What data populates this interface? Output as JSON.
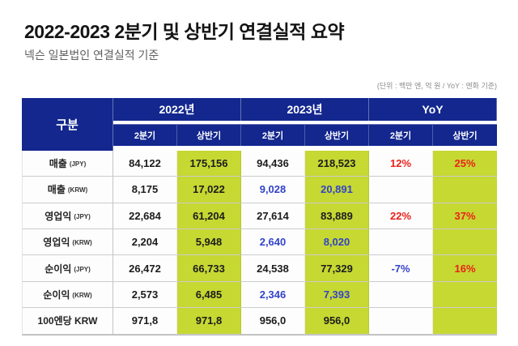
{
  "page": {
    "title": "2022-2023 2분기 및 상반기 연결실적 요약",
    "subtitle": "넥슨 일본법인 연결실적 기준",
    "unit_note": "(단위 : 백만 엔, 억 원 / YoY : 엔화 기준)"
  },
  "colors": {
    "header_bg": "#13278e",
    "highlight": "#c6d832",
    "increase_red": "#e8231b",
    "decrease_blue": "#3243c8",
    "body_text": "#1c1c1c"
  },
  "table": {
    "corner_label": "구분",
    "groups": [
      {
        "label": "2022년",
        "sub": [
          "2분기",
          "상반기"
        ]
      },
      {
        "label": "2023년",
        "sub": [
          "2분기",
          "상반기"
        ]
      },
      {
        "label": "YoY",
        "sub": [
          "2분기",
          "상반기"
        ]
      }
    ],
    "rows": [
      {
        "label": "매출",
        "unit": "(JPY)",
        "cells": [
          {
            "v": "84,122"
          },
          {
            "v": "175,156",
            "hl": true
          },
          {
            "v": "94,436"
          },
          {
            "v": "218,523",
            "hl": true
          },
          {
            "v": "12%",
            "color": "red"
          },
          {
            "v": "25%",
            "hl": true,
            "color": "red"
          }
        ]
      },
      {
        "label": "매출",
        "unit": "(KRW)",
        "cells": [
          {
            "v": "8,175"
          },
          {
            "v": "17,022",
            "hl": true
          },
          {
            "v": "9,028",
            "color": "blue"
          },
          {
            "v": "20,891",
            "hl": true,
            "color": "blue"
          },
          {
            "v": ""
          },
          {
            "v": "",
            "hl": true
          }
        ]
      },
      {
        "label": "영업익",
        "unit": "(JPY)",
        "cells": [
          {
            "v": "22,684"
          },
          {
            "v": "61,204",
            "hl": true
          },
          {
            "v": "27,614"
          },
          {
            "v": "83,889",
            "hl": true
          },
          {
            "v": "22%",
            "color": "red"
          },
          {
            "v": "37%",
            "hl": true,
            "color": "red"
          }
        ]
      },
      {
        "label": "영업익",
        "unit": "(KRW)",
        "cells": [
          {
            "v": "2,204"
          },
          {
            "v": "5,948",
            "hl": true
          },
          {
            "v": "2,640",
            "color": "blue"
          },
          {
            "v": "8,020",
            "hl": true,
            "color": "blue"
          },
          {
            "v": ""
          },
          {
            "v": "",
            "hl": true
          }
        ]
      },
      {
        "label": "순이익",
        "unit": "(JPY)",
        "cells": [
          {
            "v": "26,472"
          },
          {
            "v": "66,733",
            "hl": true
          },
          {
            "v": "24,538"
          },
          {
            "v": "77,329",
            "hl": true
          },
          {
            "v": "-7%",
            "color": "blue"
          },
          {
            "v": "16%",
            "hl": true,
            "color": "red"
          }
        ]
      },
      {
        "label": "순이익",
        "unit": "(KRW)",
        "cells": [
          {
            "v": "2,573"
          },
          {
            "v": "6,485",
            "hl": true
          },
          {
            "v": "2,346",
            "color": "blue"
          },
          {
            "v": "7,393",
            "hl": true,
            "color": "blue"
          },
          {
            "v": ""
          },
          {
            "v": "",
            "hl": true
          }
        ]
      },
      {
        "label": "100엔당 KRW",
        "unit": "",
        "cells": [
          {
            "v": "971,8"
          },
          {
            "v": "971,8",
            "hl": true
          },
          {
            "v": "956,0"
          },
          {
            "v": "956,0",
            "hl": true
          },
          {
            "v": ""
          },
          {
            "v": "",
            "hl": true
          }
        ]
      }
    ]
  }
}
